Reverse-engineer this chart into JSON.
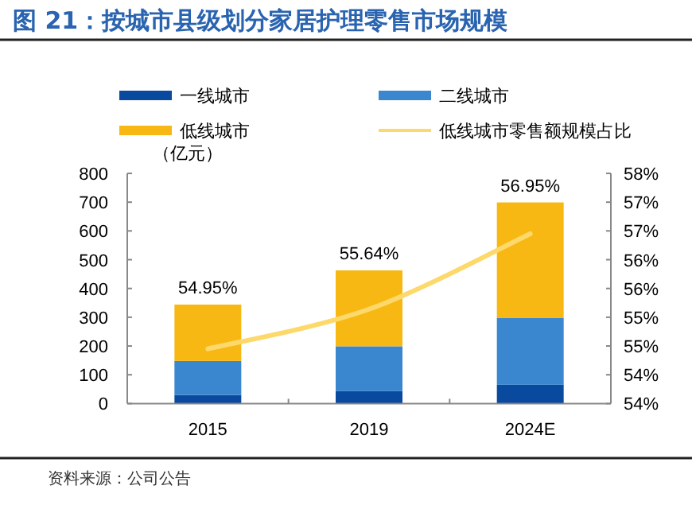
{
  "chart_data": {
    "type": "bar",
    "title": "图 21：按城市县级划分家居护理零售市场规模",
    "categories": [
      "2015",
      "2019",
      "2024E"
    ],
    "stacked": true,
    "legend": "top",
    "ylabel": "（亿元）",
    "ylim": [
      0,
      800
    ],
    "yticks": [
      0,
      100,
      200,
      300,
      400,
      500,
      600,
      700,
      800
    ],
    "y2lim": [
      54,
      58
    ],
    "y2ticks": [
      {
        "value": 54,
        "label": "54%"
      },
      {
        "value": 54.5,
        "label": "54%"
      },
      {
        "value": 55,
        "label": "55%"
      },
      {
        "value": 55.5,
        "label": "55%"
      },
      {
        "value": 56,
        "label": "56%"
      },
      {
        "value": 56.5,
        "label": "56%"
      },
      {
        "value": 57,
        "label": "57%"
      },
      {
        "value": 57.5,
        "label": "57%"
      },
      {
        "value": 58,
        "label": "58%"
      }
    ],
    "series": [
      {
        "name": "一线城市",
        "color": "#0a4a9e",
        "values": [
          30,
          43,
          65
        ]
      },
      {
        "name": "二线城市",
        "color": "#3a87d0",
        "values": [
          118,
          156,
          232
        ]
      },
      {
        "name": "低线城市",
        "color": "#f7b813",
        "values": [
          196,
          264,
          402
        ]
      },
      {
        "name": "低线城市零售额规模占比",
        "type": "line",
        "axis": "y2",
        "color": "#fdd96b",
        "values": [
          54.95,
          55.64,
          56.95
        ],
        "value_labels": [
          "54.95%",
          "55.64%",
          "56.95%"
        ]
      }
    ],
    "annotations": [
      "资料来源：公司公告"
    ]
  }
}
